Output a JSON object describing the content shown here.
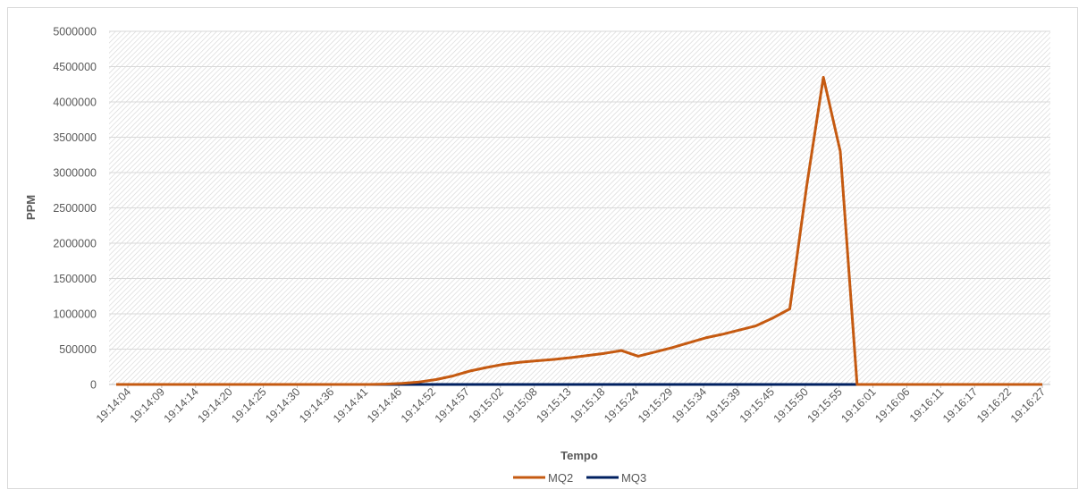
{
  "chart_data": {
    "type": "line",
    "title": "",
    "xlabel": "Tempo",
    "ylabel": "PPM",
    "ylim": [
      0,
      5000000
    ],
    "yticks": [
      0,
      500000,
      1000000,
      1500000,
      2000000,
      2500000,
      3000000,
      3500000,
      4000000,
      4500000,
      5000000
    ],
    "ytick_labels": [
      "0",
      "500000",
      "1000000",
      "1500000",
      "2000000",
      "2500000",
      "3000000",
      "3500000",
      "4000000",
      "4500000",
      "5000000"
    ],
    "x_tick_labels": [
      "19:14:04",
      "19:14:09",
      "19:14:14",
      "19:14:20",
      "19:14:25",
      "19:14:30",
      "19:14:36",
      "19:14:41",
      "19:14:46",
      "19:14:52",
      "19:14:57",
      "19:15:02",
      "19:15:08",
      "19:15:13",
      "19:15:18",
      "19:15:24",
      "19:15:29",
      "19:15:34",
      "19:15:39",
      "19:15:45",
      "19:15:50",
      "19:15:55",
      "19:16:01",
      "19:16:06",
      "19:16:11",
      "19:16:17",
      "19:16:22",
      "19:16:27"
    ],
    "grid": true,
    "legend_position": "bottom",
    "series": [
      {
        "name": "MQ2",
        "color": "#C55A11",
        "values": [
          0,
          0,
          0,
          0,
          0,
          0,
          0,
          0,
          0,
          0,
          0,
          0,
          0,
          0,
          0,
          0,
          5000,
          15000,
          35000,
          70000,
          120000,
          190000,
          240000,
          285000,
          315000,
          335000,
          355000,
          380000,
          410000,
          440000,
          480000,
          400000,
          460000,
          520000,
          590000,
          660000,
          710000,
          770000,
          830000,
          940000,
          1070000,
          2800000,
          4350000,
          3300000,
          0,
          0,
          0,
          0,
          0,
          0,
          0,
          0,
          0,
          0,
          0,
          0
        ]
      },
      {
        "name": "MQ3",
        "color": "#002060",
        "values": [
          0,
          0,
          0,
          0,
          0,
          0,
          0,
          0,
          0,
          0,
          0,
          0,
          0,
          0,
          0,
          0,
          0,
          0,
          0,
          0,
          0,
          0,
          0,
          0,
          0,
          0,
          0,
          0,
          0,
          0,
          0,
          0,
          0,
          0,
          0,
          0,
          0,
          0,
          0,
          0,
          0,
          0,
          0,
          0,
          0,
          0,
          0,
          0,
          0,
          0,
          0,
          0,
          0,
          0,
          0,
          0
        ]
      }
    ]
  }
}
